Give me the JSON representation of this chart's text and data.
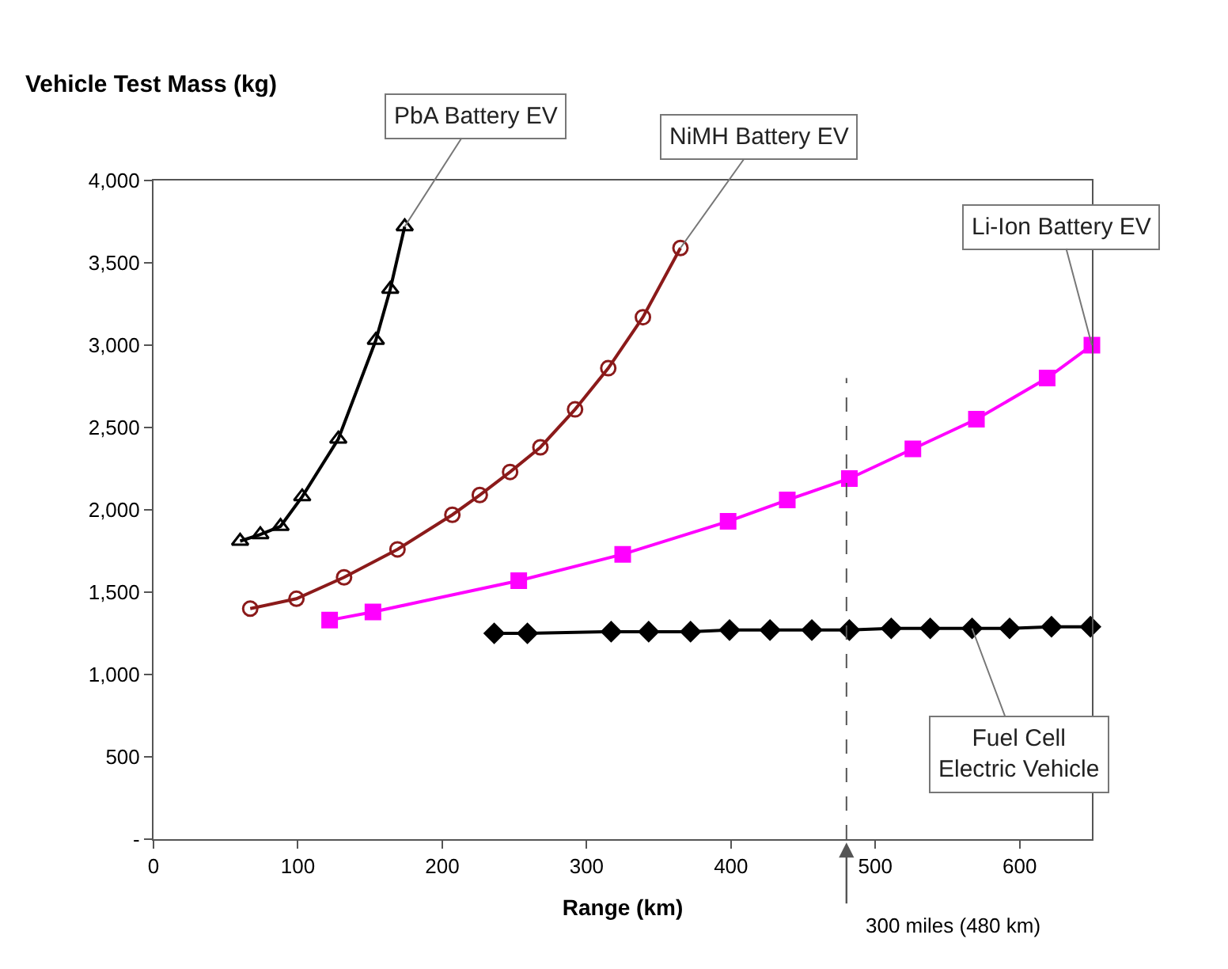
{
  "chart_data": {
    "type": "line",
    "ylabel": "Vehicle Test Mass (kg)",
    "xlabel": "Range (km)",
    "xlim": [
      0,
      650
    ],
    "xticks": [
      0,
      100,
      200,
      300,
      400,
      500,
      600
    ],
    "ylim": [
      0,
      4000
    ],
    "yticks": [
      {
        "value": 0,
        "label": "-"
      },
      500,
      {
        "value": 1000,
        "label": "1,000"
      },
      {
        "value": 1500,
        "label": "1,500"
      },
      {
        "value": 2000,
        "label": "2,000"
      },
      {
        "value": 2500,
        "label": "2,500"
      },
      {
        "value": 3000,
        "label": "3,000"
      },
      {
        "value": 3500,
        "label": "3,500"
      },
      {
        "value": 4000,
        "label": "4,000"
      }
    ],
    "grid": false,
    "line_style": "solid",
    "series": [
      {
        "color": "#000000",
        "marker": "triangle",
        "x": [
          60,
          74,
          88,
          103,
          128,
          154,
          164,
          174
        ],
        "values": [
          1810,
          1850,
          1900,
          2080,
          2430,
          3030,
          3340,
          3720
        ]
      },
      {
        "color": "#8b1a1a",
        "marker": "circle",
        "x": [
          67,
          99,
          132,
          169,
          207,
          226,
          247,
          268,
          292,
          315,
          339,
          365
        ],
        "values": [
          1400,
          1460,
          1590,
          1760,
          1970,
          2090,
          2230,
          2380,
          2610,
          2860,
          3170,
          3590
        ]
      },
      {
        "color": "#ff00ff",
        "marker": "square",
        "x": [
          122,
          152,
          253,
          325,
          398,
          439,
          482,
          526,
          570,
          619,
          650
        ],
        "values": [
          1330,
          1380,
          1570,
          1730,
          1930,
          2060,
          2190,
          2370,
          2550,
          2800,
          3000
        ]
      },
      {
        "color": "#000000",
        "marker": "diamond",
        "x": [
          236,
          259,
          317,
          343,
          372,
          399,
          427,
          456,
          482,
          511,
          538,
          567,
          593,
          622,
          649
        ],
        "values": [
          1250,
          1250,
          1260,
          1260,
          1260,
          1270,
          1270,
          1270,
          1270,
          1280,
          1280,
          1280,
          1280,
          1290,
          1290
        ]
      }
    ],
    "ref_lines": [
      {
        "axis": "x",
        "value": 480,
        "label": "300 miles (480 km)",
        "color": "#555555",
        "line_style": "dashed"
      }
    ],
    "annotations": [
      {
        "text": "PbA Battery EV",
        "x": 174,
        "y": 3720
      },
      {
        "text": "NiMH Battery EV",
        "x": 365,
        "y": 3590
      },
      {
        "text": "Li-Ion Battery EV",
        "x": 650,
        "y": 3000
      },
      {
        "text": "Fuel Cell\nElectric Vehicle",
        "x": 567,
        "y": 1280
      }
    ]
  }
}
